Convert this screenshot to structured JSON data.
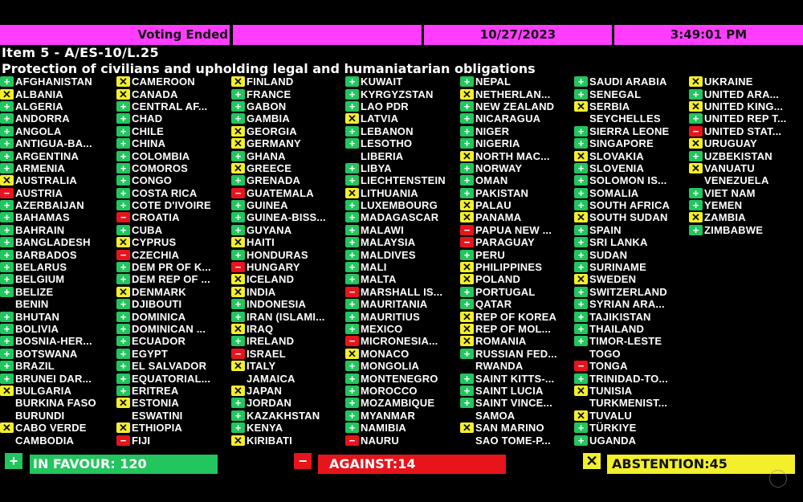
{
  "header": {
    "status": "Voting Ended",
    "blank": "",
    "date": "10/27/2023",
    "time": "3:49:01 PM"
  },
  "item": "Item 5 - A/ES-10/L.25",
  "title": "Protection of civilians and upholding legal and humaniatarian obligations",
  "colors": {
    "in_favour": "#22c55e",
    "against": "#e8141b",
    "abstention": "#f3ef2a",
    "header": "#ff3cff"
  },
  "vote_icons": {
    "Y": "plus-icon",
    "N": "minus-icon",
    "A": "x-icon"
  },
  "columns": [
    [
      [
        "AFGHANISTAN",
        "Y"
      ],
      [
        "ALBANIA",
        "A"
      ],
      [
        "ALGERIA",
        "Y"
      ],
      [
        "ANDORRA",
        "Y"
      ],
      [
        "ANGOLA",
        "Y"
      ],
      [
        "ANTIGUA-BA...",
        "Y"
      ],
      [
        "ARGENTINA",
        "Y"
      ],
      [
        "ARMENIA",
        "Y"
      ],
      [
        "AUSTRALIA",
        "A"
      ],
      [
        "AUSTRIA",
        "N"
      ],
      [
        "AZERBAIJAN",
        "Y"
      ],
      [
        "BAHAMAS",
        "Y"
      ],
      [
        "BAHRAIN",
        "Y"
      ],
      [
        "BANGLADESH",
        "Y"
      ],
      [
        "BARBADOS",
        "Y"
      ],
      [
        "BELARUS",
        "Y"
      ],
      [
        "BELGIUM",
        "Y"
      ],
      [
        "BELIZE",
        "Y"
      ],
      [
        "BENIN",
        ""
      ],
      [
        "BHUTAN",
        "Y"
      ],
      [
        "BOLIVIA",
        "Y"
      ],
      [
        "BOSNIA-HER...",
        "Y"
      ],
      [
        "BOTSWANA",
        "Y"
      ],
      [
        "BRAZIL",
        "Y"
      ],
      [
        "BRUNEI DAR...",
        "Y"
      ],
      [
        "BULGARIA",
        "A"
      ],
      [
        "BURKINA FASO",
        ""
      ],
      [
        "BURUNDI",
        ""
      ],
      [
        "CABO VERDE",
        "A"
      ],
      [
        "CAMBODIA",
        ""
      ]
    ],
    [
      [
        "CAMEROON",
        "A"
      ],
      [
        "CANADA",
        "A"
      ],
      [
        "CENTRAL AF...",
        "Y"
      ],
      [
        "CHAD",
        "Y"
      ],
      [
        "CHILE",
        "Y"
      ],
      [
        "CHINA",
        "Y"
      ],
      [
        "COLOMBIA",
        "Y"
      ],
      [
        "COMOROS",
        "Y"
      ],
      [
        "CONGO",
        "Y"
      ],
      [
        "COSTA RICA",
        "Y"
      ],
      [
        "COTE D'IVOIRE",
        "Y"
      ],
      [
        "CROATIA",
        "N"
      ],
      [
        "CUBA",
        "Y"
      ],
      [
        "CYPRUS",
        "A"
      ],
      [
        "CZECHIA",
        "N"
      ],
      [
        "DEM PR OF K...",
        "Y"
      ],
      [
        "DEM REP OF ...",
        "Y"
      ],
      [
        "DENMARK",
        "A"
      ],
      [
        "DJIBOUTI",
        "Y"
      ],
      [
        "DOMINICA",
        "Y"
      ],
      [
        "DOMINICAN ...",
        "Y"
      ],
      [
        "ECUADOR",
        "Y"
      ],
      [
        "EGYPT",
        "Y"
      ],
      [
        "EL SALVADOR",
        "Y"
      ],
      [
        "EQUATORIAL...",
        "Y"
      ],
      [
        "ERITREA",
        "Y"
      ],
      [
        "ESTONIA",
        "A"
      ],
      [
        "ESWATINI",
        ""
      ],
      [
        "ETHIOPIA",
        "A"
      ],
      [
        "FIJI",
        "N"
      ]
    ],
    [
      [
        "FINLAND",
        "A"
      ],
      [
        "FRANCE",
        "Y"
      ],
      [
        "GABON",
        "Y"
      ],
      [
        "GAMBIA",
        "Y"
      ],
      [
        "GEORGIA",
        "A"
      ],
      [
        "GERMANY",
        "A"
      ],
      [
        "GHANA",
        "Y"
      ],
      [
        "GREECE",
        "A"
      ],
      [
        "GRENADA",
        "Y"
      ],
      [
        "GUATEMALA",
        "N"
      ],
      [
        "GUINEA",
        "Y"
      ],
      [
        "GUINEA-BISS...",
        "Y"
      ],
      [
        "GUYANA",
        "Y"
      ],
      [
        "HAITI",
        "A"
      ],
      [
        "HONDURAS",
        "Y"
      ],
      [
        "HUNGARY",
        "N"
      ],
      [
        "ICELAND",
        "A"
      ],
      [
        "INDIA",
        "A"
      ],
      [
        "INDONESIA",
        "Y"
      ],
      [
        "IRAN (ISLAMI...",
        "Y"
      ],
      [
        "IRAQ",
        "A"
      ],
      [
        "IRELAND",
        "Y"
      ],
      [
        "ISRAEL",
        "N"
      ],
      [
        "ITALY",
        "A"
      ],
      [
        "JAMAICA",
        ""
      ],
      [
        "JAPAN",
        "A"
      ],
      [
        "JORDAN",
        "Y"
      ],
      [
        "KAZAKHSTAN",
        "Y"
      ],
      [
        "KENYA",
        "Y"
      ],
      [
        "KIRIBATI",
        "A"
      ]
    ],
    [
      [
        "KUWAIT",
        "Y"
      ],
      [
        "KYRGYZSTAN",
        "Y"
      ],
      [
        "LAO PDR",
        "Y"
      ],
      [
        "LATVIA",
        "A"
      ],
      [
        "LEBANON",
        "Y"
      ],
      [
        "LESOTHO",
        "Y"
      ],
      [
        "LIBERIA",
        ""
      ],
      [
        "LIBYA",
        "Y"
      ],
      [
        "LIECHTENSTEIN",
        "Y"
      ],
      [
        "LITHUANIA",
        "A"
      ],
      [
        "LUXEMBOURG",
        "Y"
      ],
      [
        "MADAGASCAR",
        "Y"
      ],
      [
        "MALAWI",
        "Y"
      ],
      [
        "MALAYSIA",
        "Y"
      ],
      [
        "MALDIVES",
        "Y"
      ],
      [
        "MALI",
        "Y"
      ],
      [
        "MALTA",
        "Y"
      ],
      [
        "MARSHALL IS...",
        "N"
      ],
      [
        "MAURITANIA",
        "Y"
      ],
      [
        "MAURITIUS",
        "Y"
      ],
      [
        "MEXICO",
        "Y"
      ],
      [
        "MICRONESIA...",
        "N"
      ],
      [
        "MONACO",
        "A"
      ],
      [
        "MONGOLIA",
        "Y"
      ],
      [
        "MONTENEGRO",
        "Y"
      ],
      [
        "MOROCCO",
        "Y"
      ],
      [
        "MOZAMBIQUE",
        "Y"
      ],
      [
        "MYANMAR",
        "Y"
      ],
      [
        "NAMIBIA",
        "Y"
      ],
      [
        "NAURU",
        "N"
      ]
    ],
    [
      [
        "NEPAL",
        "Y"
      ],
      [
        "NETHERLAN...",
        "A"
      ],
      [
        "NEW ZEALAND",
        "Y"
      ],
      [
        "NICARAGUA",
        "Y"
      ],
      [
        "NIGER",
        "Y"
      ],
      [
        "NIGERIA",
        "Y"
      ],
      [
        "NORTH MAC...",
        "A"
      ],
      [
        "NORWAY",
        "Y"
      ],
      [
        "OMAN",
        "Y"
      ],
      [
        "PAKISTAN",
        "Y"
      ],
      [
        "PALAU",
        "A"
      ],
      [
        "PANAMA",
        "A"
      ],
      [
        "PAPUA NEW ...",
        "N"
      ],
      [
        "PARAGUAY",
        "N"
      ],
      [
        "PERU",
        "Y"
      ],
      [
        "PHILIPPINES",
        "A"
      ],
      [
        "POLAND",
        "A"
      ],
      [
        "PORTUGAL",
        "Y"
      ],
      [
        "QATAR",
        "Y"
      ],
      [
        "REP OF KOREA",
        "A"
      ],
      [
        "REP OF MOL...",
        "A"
      ],
      [
        "ROMANIA",
        "A"
      ],
      [
        "RUSSIAN FED...",
        "Y"
      ],
      [
        "RWANDA",
        ""
      ],
      [
        "SAINT KITTS-...",
        "Y"
      ],
      [
        "SAINT LUCIA",
        "Y"
      ],
      [
        "SAINT VINCE...",
        "Y"
      ],
      [
        "SAMOA",
        ""
      ],
      [
        "SAN MARINO",
        "A"
      ],
      [
        "SAO TOME-P...",
        ""
      ]
    ],
    [
      [
        "SAUDI ARABIA",
        "Y"
      ],
      [
        "SENEGAL",
        "Y"
      ],
      [
        "SERBIA",
        "A"
      ],
      [
        "SEYCHELLES",
        ""
      ],
      [
        "SIERRA LEONE",
        "Y"
      ],
      [
        "SINGAPORE",
        "Y"
      ],
      [
        "SLOVAKIA",
        "A"
      ],
      [
        "SLOVENIA",
        "Y"
      ],
      [
        "SOLOMON IS...",
        "Y"
      ],
      [
        "SOMALIA",
        "Y"
      ],
      [
        "SOUTH AFRICA",
        "Y"
      ],
      [
        "SOUTH SUDAN",
        "A"
      ],
      [
        "SPAIN",
        "Y"
      ],
      [
        "SRI LANKA",
        "Y"
      ],
      [
        "SUDAN",
        "Y"
      ],
      [
        "SURINAME",
        "Y"
      ],
      [
        "SWEDEN",
        "A"
      ],
      [
        "SWITZERLAND",
        "Y"
      ],
      [
        "SYRIAN ARA...",
        "Y"
      ],
      [
        "TAJIKISTAN",
        "Y"
      ],
      [
        "THAILAND",
        "Y"
      ],
      [
        "TIMOR-LESTE",
        "Y"
      ],
      [
        "TOGO",
        ""
      ],
      [
        "TONGA",
        "N"
      ],
      [
        "TRINIDAD-TO...",
        "Y"
      ],
      [
        "TUNISIA",
        "A"
      ],
      [
        "TURKMENIST...",
        ""
      ],
      [
        "TUVALU",
        "A"
      ],
      [
        "TÜRKIYE",
        "Y"
      ],
      [
        "UGANDA",
        "Y"
      ]
    ],
    [
      [
        "UKRAINE",
        "A"
      ],
      [
        "UNITED ARA...",
        "Y"
      ],
      [
        "UNITED KING...",
        "A"
      ],
      [
        "UNITED REP T...",
        "Y"
      ],
      [
        "UNITED STAT...",
        "N"
      ],
      [
        "URUGUAY",
        "A"
      ],
      [
        "UZBEKISTAN",
        "Y"
      ],
      [
        "VANUATU",
        "A"
      ],
      [
        "VENEZUELA",
        ""
      ],
      [
        "VIET NAM",
        "Y"
      ],
      [
        "YEMEN",
        "Y"
      ],
      [
        "ZAMBIA",
        "A"
      ],
      [
        "ZIMBABWE",
        "Y"
      ]
    ]
  ],
  "summary": {
    "in_favour": "IN FAVOUR: 120",
    "against": "AGAINST:14",
    "abstention": "ABSTENTION:45"
  }
}
